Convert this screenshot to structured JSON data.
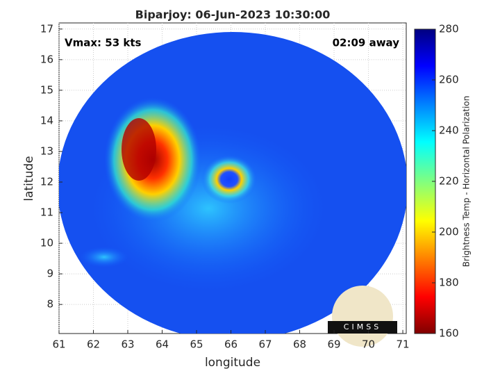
{
  "chart_data": {
    "type": "image",
    "title": "Biparjoy: 06-Jun-2023 10:30:00",
    "annotations": [
      "Vmax: 53 kts",
      "02:09 away"
    ],
    "xlabel": "longitude",
    "ylabel": "latitude",
    "xlim": [
      61,
      71.1
    ],
    "ylim": [
      7.05,
      17.2
    ],
    "xticks": [
      61,
      62,
      63,
      64,
      65,
      66,
      67,
      68,
      69,
      70,
      71
    ],
    "yticks": [
      8,
      9,
      10,
      11,
      12,
      13,
      14,
      15,
      16,
      17
    ],
    "grid": true,
    "colorbar": {
      "label": "Brightness Temp - Horizontal Polarization",
      "clim": [
        160,
        280
      ],
      "ticks": [
        160,
        180,
        200,
        220,
        240,
        260,
        280
      ],
      "colormap": "jet"
    },
    "logo": "CIMSS"
  }
}
